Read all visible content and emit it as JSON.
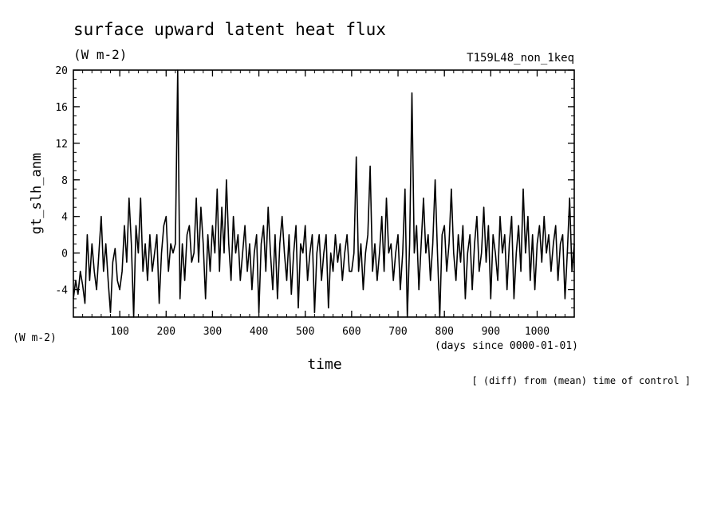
{
  "chart_data": {
    "type": "line",
    "title": "surface upward latent heat flux",
    "units": "(W m-2)",
    "experiment": "T159L48_non_1keq",
    "ylabel": "gt_slh_anm",
    "yunits": "(W m-2)",
    "xlabel": "time",
    "xunits": "(days since 0000-01-01)",
    "footnote": "[ (diff) from (mean) time of control ]",
    "xlim": [
      0,
      1080
    ],
    "ylim": [
      -7,
      20
    ],
    "xticks": [
      100,
      200,
      300,
      400,
      500,
      600,
      700,
      800,
      900,
      1000
    ],
    "yticks": [
      -4,
      0,
      4,
      8,
      12,
      16,
      20
    ],
    "grid": false,
    "series": [
      {
        "points": [
          [
            0,
            -5
          ],
          [
            5,
            -3
          ],
          [
            10,
            -4.5
          ],
          [
            15,
            -2
          ],
          [
            20,
            -3.5
          ],
          [
            25,
            -5.5
          ],
          [
            30,
            2
          ],
          [
            35,
            -3
          ],
          [
            40,
            1
          ],
          [
            45,
            -2
          ],
          [
            50,
            -4
          ],
          [
            55,
            0
          ],
          [
            60,
            4
          ],
          [
            65,
            -2
          ],
          [
            70,
            1
          ],
          [
            75,
            -3
          ],
          [
            80,
            -6.5
          ],
          [
            85,
            -1
          ],
          [
            90,
            0.5
          ],
          [
            95,
            -3
          ],
          [
            100,
            -4
          ],
          [
            105,
            -2
          ],
          [
            110,
            3
          ],
          [
            115,
            -1
          ],
          [
            120,
            6
          ],
          [
            125,
            1
          ],
          [
            130,
            -7
          ],
          [
            135,
            3
          ],
          [
            140,
            0
          ],
          [
            145,
            6
          ],
          [
            150,
            -2
          ],
          [
            155,
            1
          ],
          [
            160,
            -3
          ],
          [
            165,
            2
          ],
          [
            170,
            -2
          ],
          [
            175,
            0
          ],
          [
            180,
            2
          ],
          [
            185,
            -5.5
          ],
          [
            190,
            0
          ],
          [
            195,
            3
          ],
          [
            200,
            4
          ],
          [
            205,
            -2
          ],
          [
            210,
            1
          ],
          [
            215,
            0
          ],
          [
            220,
            1
          ],
          [
            225,
            20
          ],
          [
            230,
            -5
          ],
          [
            235,
            1
          ],
          [
            240,
            -3
          ],
          [
            245,
            2
          ],
          [
            250,
            3
          ],
          [
            255,
            -1
          ],
          [
            260,
            0
          ],
          [
            265,
            6
          ],
          [
            270,
            -1
          ],
          [
            275,
            5
          ],
          [
            280,
            1
          ],
          [
            285,
            -5
          ],
          [
            290,
            2
          ],
          [
            295,
            -2
          ],
          [
            300,
            3
          ],
          [
            305,
            0
          ],
          [
            310,
            7
          ],
          [
            315,
            -2
          ],
          [
            320,
            5
          ],
          [
            325,
            0
          ],
          [
            330,
            8
          ],
          [
            335,
            1
          ],
          [
            340,
            -3
          ],
          [
            345,
            4
          ],
          [
            350,
            0
          ],
          [
            355,
            2
          ],
          [
            360,
            -3
          ],
          [
            365,
            0
          ],
          [
            370,
            3
          ],
          [
            375,
            -2
          ],
          [
            380,
            1
          ],
          [
            385,
            -4
          ],
          [
            390,
            0
          ],
          [
            395,
            2
          ],
          [
            400,
            -6.5
          ],
          [
            405,
            1
          ],
          [
            410,
            3
          ],
          [
            415,
            -2
          ],
          [
            420,
            5
          ],
          [
            425,
            0
          ],
          [
            430,
            -4
          ],
          [
            435,
            2
          ],
          [
            440,
            -5
          ],
          [
            445,
            1
          ],
          [
            450,
            4
          ],
          [
            455,
            0
          ],
          [
            460,
            -3
          ],
          [
            465,
            2
          ],
          [
            470,
            -4.5
          ],
          [
            475,
            0
          ],
          [
            480,
            3
          ],
          [
            485,
            -6
          ],
          [
            490,
            1
          ],
          [
            495,
            0
          ],
          [
            500,
            3
          ],
          [
            505,
            -3
          ],
          [
            510,
            0
          ],
          [
            515,
            2
          ],
          [
            520,
            -6.5
          ],
          [
            525,
            0
          ],
          [
            530,
            2
          ],
          [
            535,
            -3
          ],
          [
            540,
            0
          ],
          [
            545,
            2
          ],
          [
            550,
            -6
          ],
          [
            555,
            0
          ],
          [
            560,
            -2
          ],
          [
            565,
            2
          ],
          [
            570,
            -1
          ],
          [
            575,
            1
          ],
          [
            580,
            -3
          ],
          [
            585,
            0
          ],
          [
            590,
            2
          ],
          [
            595,
            -2
          ],
          [
            600,
            -2
          ],
          [
            605,
            0
          ],
          [
            610,
            10.5
          ],
          [
            615,
            -2
          ],
          [
            620,
            1
          ],
          [
            625,
            -4
          ],
          [
            630,
            0
          ],
          [
            635,
            2
          ],
          [
            640,
            9.5
          ],
          [
            645,
            -2
          ],
          [
            650,
            1
          ],
          [
            655,
            -3
          ],
          [
            660,
            0
          ],
          [
            665,
            4
          ],
          [
            670,
            -2
          ],
          [
            675,
            6
          ],
          [
            680,
            0
          ],
          [
            685,
            1
          ],
          [
            690,
            -3
          ],
          [
            695,
            0
          ],
          [
            700,
            2
          ],
          [
            705,
            -4
          ],
          [
            710,
            0
          ],
          [
            715,
            7
          ],
          [
            720,
            -7
          ],
          [
            725,
            1
          ],
          [
            730,
            17.5
          ],
          [
            735,
            0
          ],
          [
            740,
            3
          ],
          [
            745,
            -4
          ],
          [
            750,
            1
          ],
          [
            755,
            6
          ],
          [
            760,
            0
          ],
          [
            765,
            2
          ],
          [
            770,
            -3
          ],
          [
            775,
            1
          ],
          [
            780,
            8
          ],
          [
            785,
            0
          ],
          [
            790,
            -7
          ],
          [
            795,
            2
          ],
          [
            800,
            3
          ],
          [
            805,
            -2
          ],
          [
            810,
            1
          ],
          [
            815,
            7
          ],
          [
            820,
            0
          ],
          [
            825,
            -3
          ],
          [
            830,
            2
          ],
          [
            835,
            -1
          ],
          [
            840,
            3
          ],
          [
            845,
            -5
          ],
          [
            850,
            0
          ],
          [
            855,
            2
          ],
          [
            860,
            -4
          ],
          [
            865,
            1
          ],
          [
            870,
            4
          ],
          [
            875,
            -2
          ],
          [
            880,
            0
          ],
          [
            885,
            5
          ],
          [
            890,
            -1
          ],
          [
            895,
            3
          ],
          [
            900,
            -5
          ],
          [
            905,
            2
          ],
          [
            910,
            0
          ],
          [
            915,
            -3
          ],
          [
            920,
            4
          ],
          [
            925,
            0
          ],
          [
            930,
            2
          ],
          [
            935,
            -4
          ],
          [
            940,
            1
          ],
          [
            945,
            4
          ],
          [
            950,
            -5
          ],
          [
            955,
            0
          ],
          [
            960,
            3
          ],
          [
            965,
            -2
          ],
          [
            970,
            7
          ],
          [
            975,
            0
          ],
          [
            980,
            4
          ],
          [
            985,
            -3
          ],
          [
            990,
            2
          ],
          [
            995,
            -4
          ],
          [
            1000,
            1
          ],
          [
            1005,
            3
          ],
          [
            1010,
            -1
          ],
          [
            1015,
            4
          ],
          [
            1020,
            0
          ],
          [
            1025,
            2
          ],
          [
            1030,
            -2
          ],
          [
            1035,
            1
          ],
          [
            1040,
            3
          ],
          [
            1045,
            -3
          ],
          [
            1050,
            1
          ],
          [
            1055,
            2
          ],
          [
            1060,
            -5
          ],
          [
            1065,
            0
          ],
          [
            1070,
            6
          ],
          [
            1075,
            -2
          ],
          [
            1080,
            1
          ]
        ]
      }
    ]
  },
  "colors": {
    "line": "#000000",
    "background": "#ffffff"
  }
}
